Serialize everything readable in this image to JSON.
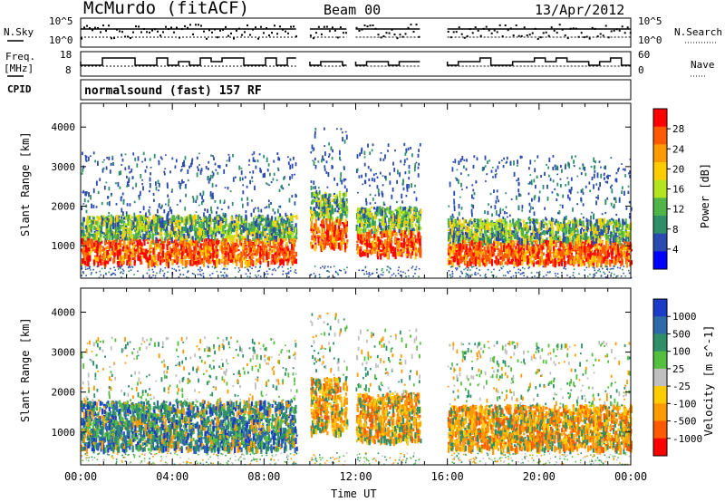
{
  "header": {
    "station": "McMurdo (fitACF)",
    "beam": "Beam 00",
    "date": "13/Apr/2012"
  },
  "left_labels": {
    "nsky": "N.Sky",
    "freq_line1": "Freq.",
    "freq_line2": "[MHz]",
    "cpid": "CPID"
  },
  "right_labels": {
    "nsearch": "N.Search",
    "nave": "Nave"
  },
  "top_panel_ticks": {
    "nsky_left": [
      "10^5",
      "10^0"
    ],
    "nsearch_right": [
      "10^5",
      "10^0"
    ],
    "freq_left": [
      "18",
      "8"
    ],
    "nave_right": [
      "60",
      "0"
    ]
  },
  "cpid_text": "normalsound (fast) 157 RF",
  "xaxis": {
    "label": "Time UT",
    "ticks": [
      "00:00",
      "04:00",
      "08:00",
      "12:00",
      "16:00",
      "20:00",
      "00:00"
    ]
  },
  "power_panel": {
    "ylabel": "Slant Range [km]",
    "yticks": [
      "4000",
      "3000",
      "2000",
      "1000"
    ],
    "colorbar_label": "Power [dB]",
    "colorbar_ticks": [
      "28",
      "24",
      "20",
      "16",
      "12",
      "8",
      "4"
    ],
    "colorbar_colors": [
      "#ff0000",
      "#ff5a00",
      "#ff9900",
      "#ffcc00",
      "#b4e41e",
      "#4fb548",
      "#2e8f68",
      "#2a4ab0",
      "#0000ff"
    ]
  },
  "velocity_panel": {
    "ylabel": "Slant Range [km]",
    "yticks": [
      "4000",
      "3000",
      "2000",
      "1000"
    ],
    "colorbar_label": "Velocity [m s^-1]",
    "colorbar_ticks": [
      "1000",
      "500",
      "100",
      "25",
      "-25",
      "-100",
      "-500",
      "-1000"
    ],
    "colorbar_colors": [
      "#1a3cc8",
      "#2e6aa8",
      "#2e8f68",
      "#55c040",
      "#c0c0c0",
      "#ffcc00",
      "#ff9900",
      "#ff5a00",
      "#ff0000"
    ]
  },
  "chart_data": [
    {
      "type": "heatmap",
      "title": "Power",
      "xlabel": "Time UT",
      "ylabel": "Slant Range [km]",
      "xlim": [
        0,
        24
      ],
      "ylim": [
        180,
        4600
      ],
      "colorbar": {
        "label": "Power [dB]",
        "ticks": [
          28,
          24,
          20,
          16,
          12,
          8,
          4
        ]
      },
      "data_gaps_ut_hours": [
        [
          9.4,
          9.9
        ],
        [
          11.6,
          12.0
        ],
        [
          14.8,
          16.0
        ]
      ],
      "bands": [
        {
          "t_start": 0.0,
          "t_end": 9.4,
          "range_km": [
            600,
            1800
          ],
          "dominant_db": 24
        },
        {
          "t_start": 10.0,
          "t_end": 11.6,
          "range_km": [
            1000,
            2400
          ],
          "dominant_db": 16
        },
        {
          "t_start": 12.0,
          "t_end": 14.8,
          "range_km": [
            800,
            2000
          ],
          "dominant_db": 20
        },
        {
          "t_start": 16.0,
          "t_end": 24.0,
          "range_km": [
            600,
            1700
          ],
          "dominant_db": 24
        }
      ]
    },
    {
      "type": "heatmap",
      "title": "Velocity",
      "xlabel": "Time UT",
      "ylabel": "Slant Range [km]",
      "xlim": [
        0,
        24
      ],
      "ylim": [
        180,
        4600
      ],
      "colorbar": {
        "label": "Velocity [m s^-1]",
        "ticks": [
          1000,
          500,
          100,
          25,
          -25,
          -100,
          -500,
          -1000
        ]
      },
      "bands": [
        {
          "t_start": 0.0,
          "t_end": 9.4,
          "range_km": [
            600,
            1800
          ],
          "dominant_velocity": 100
        },
        {
          "t_start": 10.0,
          "t_end": 11.6,
          "range_km": [
            1000,
            2400
          ],
          "dominant_velocity": -100
        },
        {
          "t_start": 12.0,
          "t_end": 14.8,
          "range_km": [
            800,
            2000
          ],
          "dominant_velocity": -100
        },
        {
          "t_start": 16.0,
          "t_end": 24.0,
          "range_km": [
            600,
            1700
          ],
          "dominant_velocity": -100
        }
      ]
    }
  ]
}
